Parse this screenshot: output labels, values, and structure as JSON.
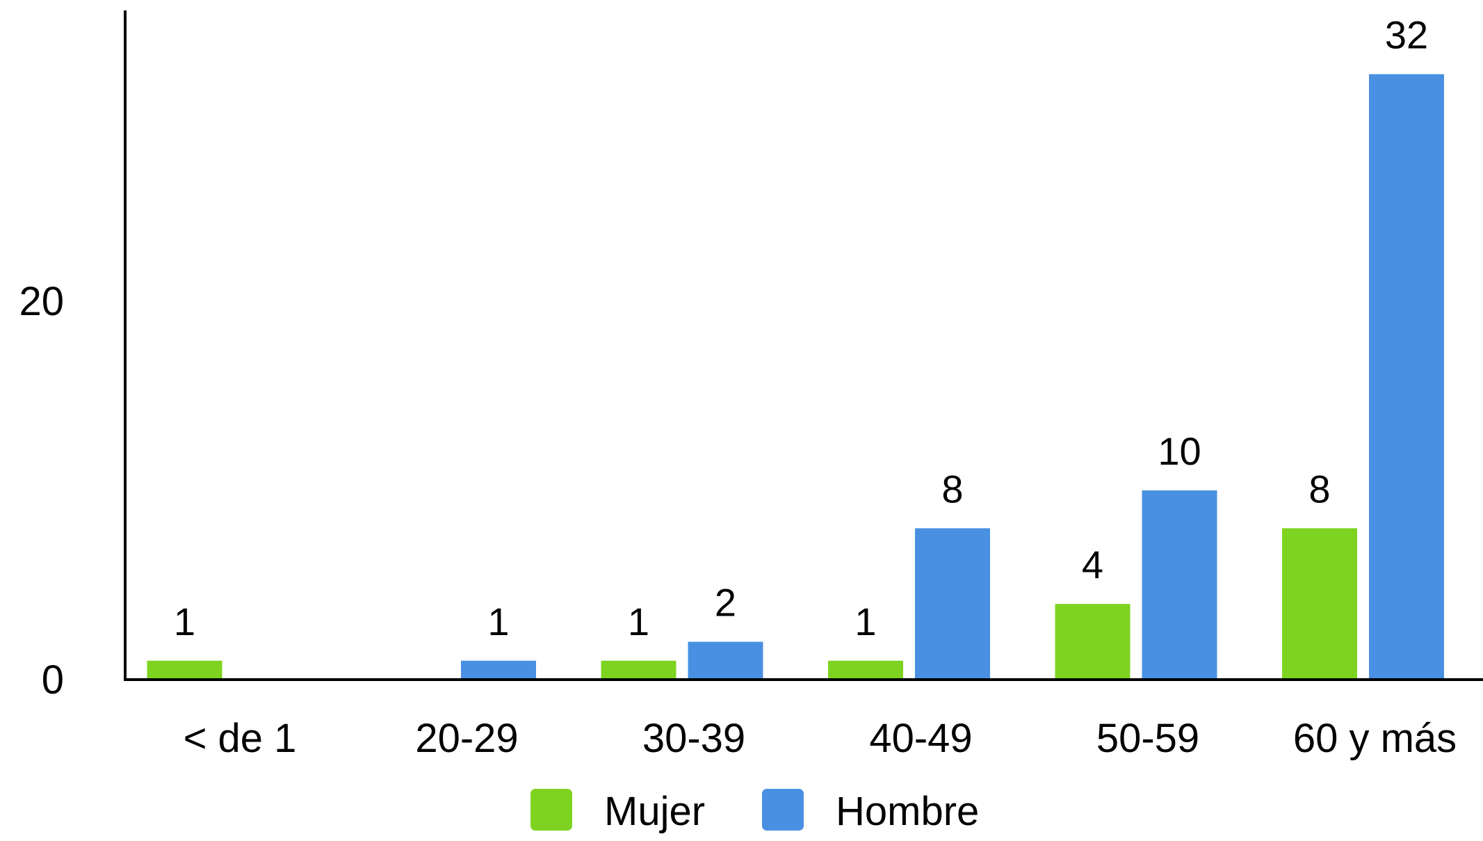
{
  "chart_data": {
    "type": "bar",
    "categories": [
      "< de 1",
      "20-29",
      "30-39",
      "40-49",
      "50-59",
      "60 y más"
    ],
    "series": [
      {
        "name": "Mujer",
        "color": "#7ed321",
        "values": [
          1,
          0,
          1,
          1,
          4,
          8
        ]
      },
      {
        "name": "Hombre",
        "color": "#4a90e2",
        "values": [
          0,
          1,
          2,
          8,
          10,
          32
        ]
      }
    ],
    "data_labels": {
      "Mujer": [
        "1",
        "",
        "1",
        "1",
        "4",
        "8"
      ],
      "Hombre": [
        "",
        "1",
        "2",
        "8",
        "10",
        "32"
      ]
    },
    "yticks": [
      0,
      20
    ],
    "ylim": [
      0,
      34
    ],
    "grid": false,
    "legend_position": "bottom-center"
  }
}
